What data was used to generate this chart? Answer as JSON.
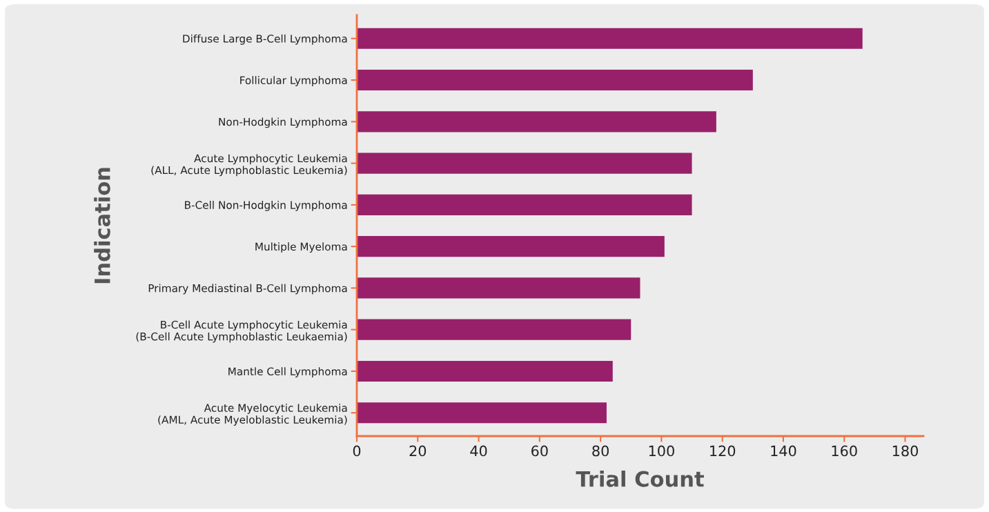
{
  "chart_data": {
    "type": "bar",
    "orientation": "horizontal",
    "xlabel": "Trial Count",
    "ylabel": "Indication",
    "categories": [
      "Diffuse Large B-Cell Lymphoma",
      "Follicular Lymphoma",
      "Non-Hodgkin Lymphoma",
      "Acute Lymphocytic Leukemia\n(ALL, Acute Lymphoblastic Leukemia)",
      "B-Cell Non-Hodgkin Lymphoma",
      "Multiple Myeloma",
      "Primary Mediastinal B-Cell Lymphoma",
      "B-Cell Acute Lymphocytic Leukemia\n(B-Cell Acute Lymphoblastic Leukaemia)",
      "Mantle Cell Lymphoma",
      "Acute Myelocytic Leukemia\n(AML, Acute Myeloblastic Leukemia)"
    ],
    "values": [
      166,
      130,
      118,
      110,
      110,
      101,
      93,
      90,
      84,
      82
    ],
    "color": "#98206a",
    "xlim": [
      0,
      186
    ],
    "xticks": [
      0,
      20,
      40,
      60,
      80,
      100,
      120,
      140,
      160,
      180
    ]
  }
}
